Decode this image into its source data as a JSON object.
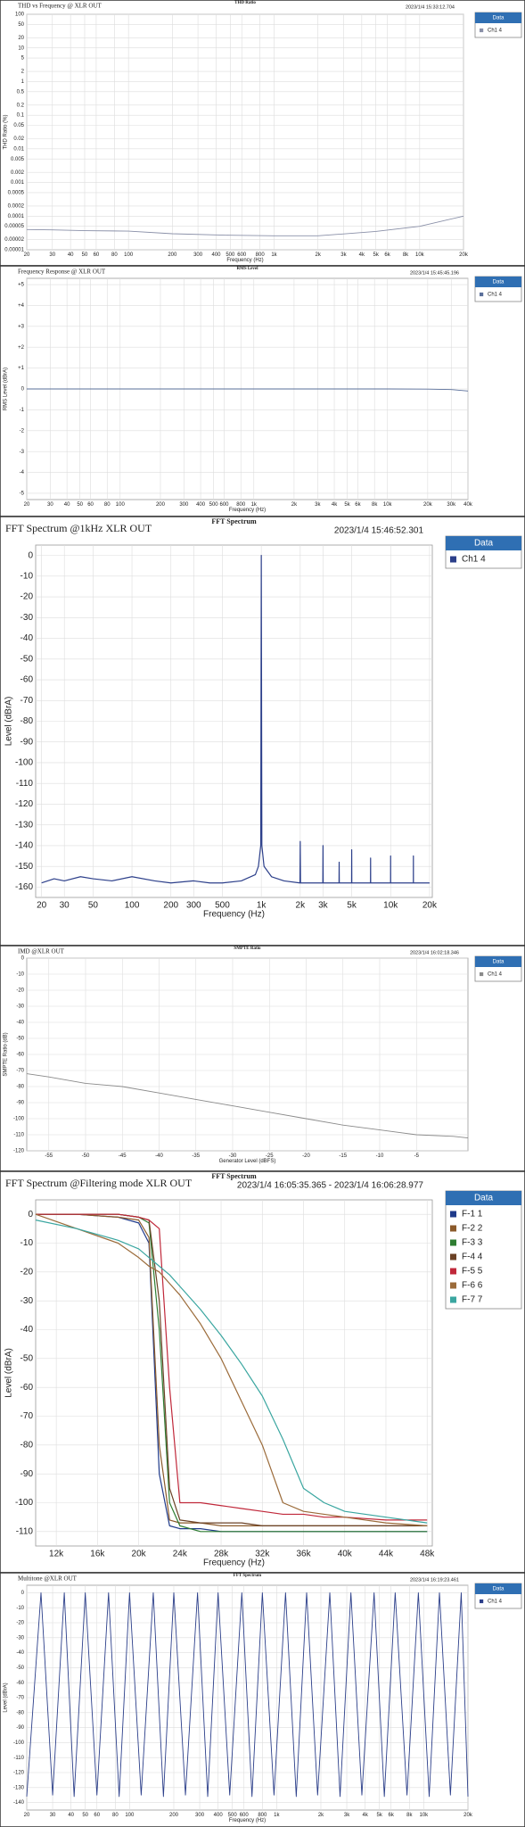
{
  "chart_data": [
    {
      "type": "line",
      "title": "THD vs Frequency @ XLR OUT",
      "header": "THD Ratio",
      "timestamp": "2023/1/4 15:33:12.704",
      "x_label": "Frequency (Hz)",
      "y_label": "THD Ratio (%)",
      "x_log": true,
      "y_log": true,
      "grid": true,
      "legend_title": "Data",
      "legend": "right",
      "xlim": [
        20,
        20000
      ],
      "ylim": [
        1e-05,
        100
      ],
      "xticks": [
        20,
        30,
        40,
        50,
        60,
        80,
        100,
        200,
        300,
        400,
        500,
        600,
        800,
        {
          "value": 1000,
          "label": "1k"
        },
        {
          "value": 2000,
          "label": "2k"
        },
        {
          "value": 3000,
          "label": "3k"
        },
        {
          "value": 4000,
          "label": "4k"
        },
        {
          "value": 5000,
          "label": "5k"
        },
        {
          "value": 6000,
          "label": "6k"
        },
        {
          "value": 8000,
          "label": "8k"
        },
        {
          "value": 10000,
          "label": "10k"
        },
        {
          "value": 20000,
          "label": "20k"
        }
      ],
      "yticks": [
        100,
        50,
        20,
        10,
        5,
        2,
        1,
        0.5,
        0.2,
        0.1,
        0.05,
        0.02,
        0.01,
        0.005,
        0.002,
        0.001,
        0.0005,
        0.0002,
        0.0001,
        5e-05,
        2e-05,
        1e-05
      ],
      "x": [
        20,
        30,
        50,
        100,
        200,
        500,
        1000,
        2000,
        5000,
        10000,
        20000
      ],
      "series": [
        {
          "name": "Ch1 4",
          "color": "#8a90a8",
          "values": [
            4e-05,
            3.9e-05,
            3.7e-05,
            3.6e-05,
            3e-05,
            2.7e-05,
            2.6e-05,
            2.6e-05,
            3.5e-05,
            5e-05,
            0.0001
          ]
        }
      ]
    },
    {
      "type": "line",
      "title": "Frequency Response @ XLR OUT",
      "header": "RMS Level",
      "timestamp": "2023/1/4 15:45:45.196",
      "x_label": "Frequency (Hz)",
      "y_label": "RMS Level (dBrA)",
      "x_log": true,
      "y_log": false,
      "grid": true,
      "legend_title": "Data",
      "legend": "right",
      "xlim": [
        20,
        40000
      ],
      "ylim": [
        -5.3,
        5.3
      ],
      "xticks": [
        20,
        30,
        40,
        50,
        60,
        80,
        100,
        200,
        300,
        400,
        500,
        600,
        800,
        {
          "value": 1000,
          "label": "1k"
        },
        {
          "value": 2000,
          "label": "2k"
        },
        {
          "value": 3000,
          "label": "3k"
        },
        {
          "value": 4000,
          "label": "4k"
        },
        {
          "value": 5000,
          "label": "5k"
        },
        {
          "value": 6000,
          "label": "6k"
        },
        {
          "value": 8000,
          "label": "8k"
        },
        {
          "value": 10000,
          "label": "10k"
        },
        {
          "value": 20000,
          "label": "20k"
        },
        {
          "value": 30000,
          "label": "30k"
        },
        {
          "value": 40000,
          "label": "40k"
        }
      ],
      "yticks": [
        {
          "value": 5,
          "label": "+5"
        },
        {
          "value": 4,
          "label": "+4"
        },
        {
          "value": 3,
          "label": "+3"
        },
        {
          "value": 2,
          "label": "+2"
        },
        {
          "value": 1,
          "label": "+1"
        },
        0,
        -1,
        -2,
        -3,
        -4,
        -5
      ],
      "x": [
        20,
        100,
        1000,
        10000,
        20000,
        30000,
        40000
      ],
      "series": [
        {
          "name": "Ch1 4",
          "color": "#5a6f9a",
          "values": [
            0,
            0,
            0,
            0,
            -0.01,
            -0.03,
            -0.1
          ]
        }
      ]
    },
    {
      "type": "line",
      "title": "FFT Spectrum @1kHz XLR OUT",
      "header": "FFT Spectrum",
      "timestamp": "2023/1/4 15:46:52.301",
      "x_label": "Frequency (Hz)",
      "y_label": "Level (dBrA)",
      "x_log": true,
      "y_log": false,
      "grid": true,
      "legend_title": "Data",
      "legend": "right",
      "xlim": [
        18,
        21000
      ],
      "ylim": [
        -165,
        5
      ],
      "xticks": [
        20,
        30,
        50,
        100,
        200,
        300,
        500,
        {
          "value": 1000,
          "label": "1k"
        },
        {
          "value": 2000,
          "label": "2k"
        },
        {
          "value": 3000,
          "label": "3k"
        },
        {
          "value": 5000,
          "label": "5k"
        },
        {
          "value": 10000,
          "label": "10k"
        },
        {
          "value": 20000,
          "label": "20k"
        }
      ],
      "yticks": [
        0,
        -10,
        -20,
        -30,
        -40,
        -50,
        -60,
        -70,
        -80,
        -90,
        -100,
        -110,
        -120,
        -130,
        -140,
        -150,
        -160
      ],
      "x": [
        20,
        25,
        30,
        40,
        50,
        70,
        100,
        150,
        200,
        300,
        400,
        500,
        700,
        900,
        950,
        990,
        1000,
        1010,
        1050,
        1200,
        1500,
        1990,
        2000,
        2010,
        2990,
        3000,
        3010,
        3990,
        4000,
        4010,
        4990,
        5000,
        5010,
        6990,
        7000,
        7010,
        9990,
        10000,
        10010,
        14990,
        15000,
        15010,
        20000
      ],
      "series": [
        {
          "name": "Ch1 4",
          "color": "#2c3f8a",
          "values": [
            -158,
            -156,
            -157,
            -155,
            -156,
            -157,
            -155,
            -157,
            -158,
            -157,
            -158,
            -158,
            -157,
            -154,
            -150,
            -140,
            0,
            -140,
            -150,
            -155,
            -157,
            -158,
            -138,
            -158,
            -158,
            -140,
            -158,
            -158,
            -148,
            -158,
            -158,
            -142,
            -158,
            -158,
            -146,
            -158,
            -158,
            -145,
            -158,
            -158,
            -145,
            -158,
            -158
          ]
        }
      ]
    },
    {
      "type": "line",
      "title": "IMD @XLR OUT",
      "header": "SMPTE Ratio",
      "timestamp": "2023/1/4 16:02:18.346",
      "x_label": "Generator Level (dBFS)",
      "y_label": "SMPTE Ratio (dB)",
      "x_log": false,
      "y_log": false,
      "grid": true,
      "legend_title": "Data",
      "legend": "right",
      "xlim": [
        -58,
        2
      ],
      "ylim": [
        -120,
        0
      ],
      "xticks": [
        -55,
        -50,
        -45,
        -40,
        -35,
        -30,
        -25,
        -20,
        -15,
        -10,
        -5
      ],
      "yticks": [
        0,
        -10,
        -20,
        -30,
        -40,
        -50,
        -60,
        -70,
        -80,
        -90,
        -100,
        -110,
        -120
      ],
      "x": [
        -58,
        -55,
        -50,
        -45,
        -40,
        -35,
        -30,
        -25,
        -20,
        -15,
        -10,
        -5,
        0,
        2
      ],
      "series": [
        {
          "name": "Ch1 4",
          "color": "#8a8a8a",
          "values": [
            -72,
            -74,
            -78,
            -80,
            -84,
            -88,
            -92,
            -96,
            -100,
            -104,
            -107,
            -110,
            -111,
            -112
          ]
        }
      ]
    },
    {
      "type": "line",
      "title": "FFT Spectrum @Filtering mode XLR OUT",
      "header": "FFT Spectrum",
      "timestamp": "2023/1/4 16:05:35.365 - 2023/1/4 16:06:28.977",
      "x_label": "Frequency (Hz)",
      "y_label": "Level (dBrA)",
      "x_log": false,
      "y_log": false,
      "grid": true,
      "legend_title": "Data",
      "legend": "right",
      "xlim": [
        10000,
        48500
      ],
      "ylim": [
        -115,
        5
      ],
      "xticks": [
        {
          "value": 12000,
          "label": "12k"
        },
        {
          "value": 16000,
          "label": "16k"
        },
        {
          "value": 20000,
          "label": "20k"
        },
        {
          "value": 24000,
          "label": "24k"
        },
        {
          "value": 28000,
          "label": "28k"
        },
        {
          "value": 32000,
          "label": "32k"
        },
        {
          "value": 36000,
          "label": "36k"
        },
        {
          "value": 40000,
          "label": "40k"
        },
        {
          "value": 44000,
          "label": "44k"
        },
        {
          "value": 48000,
          "label": "48k"
        }
      ],
      "yticks": [
        0,
        -10,
        -20,
        -30,
        -40,
        -50,
        -60,
        -70,
        -80,
        -90,
        -100,
        -110
      ],
      "x": [
        10000,
        14000,
        18000,
        20000,
        21000,
        22000,
        23000,
        24000,
        26000,
        28000,
        30000,
        32000,
        34000,
        36000,
        38000,
        40000,
        44000,
        48000
      ],
      "series": [
        {
          "name": "F-1 1",
          "color": "#1f3a8a",
          "values": [
            0,
            0,
            -1,
            -3,
            -10,
            -90,
            -108,
            -109,
            -109,
            -110,
            -110,
            -110,
            -110,
            -110,
            -110,
            -110,
            -110,
            -110
          ]
        },
        {
          "name": "F-2 2",
          "color": "#8b5a2b",
          "values": [
            0,
            0,
            -1,
            -2,
            -8,
            -80,
            -106,
            -107,
            -107,
            -108,
            -108,
            -108,
            -108,
            -108,
            -108,
            -108,
            -108,
            -108
          ]
        },
        {
          "name": "F-3 3",
          "color": "#2e7d32",
          "values": [
            0,
            0,
            0,
            -1,
            -3,
            -40,
            -100,
            -108,
            -110,
            -110,
            -110,
            -110,
            -110,
            -110,
            -110,
            -110,
            -110,
            -110
          ]
        },
        {
          "name": "F-4 4",
          "color": "#6b4226",
          "values": [
            0,
            0,
            0,
            -1,
            -2,
            -30,
            -95,
            -106,
            -107,
            -107,
            -107,
            -108,
            -108,
            -108,
            -108,
            -108,
            -108,
            -108
          ]
        },
        {
          "name": "F-5 5",
          "color": "#c0283a",
          "values": [
            0,
            0,
            0,
            -1,
            -2,
            -5,
            -60,
            -100,
            -100,
            -101,
            -102,
            -103,
            -104,
            -104,
            -105,
            -105,
            -106,
            -106
          ]
        },
        {
          "name": "F-6 6",
          "color": "#9b6b3a",
          "values": [
            0,
            -5,
            -10,
            -15,
            -18,
            -20,
            -24,
            -28,
            -38,
            -50,
            -65,
            -80,
            -100,
            -103,
            -104,
            -105,
            -107,
            -108
          ]
        },
        {
          "name": "F-7 7",
          "color": "#3aa6a0",
          "values": [
            -2,
            -5,
            -9,
            -12,
            -15,
            -18,
            -21,
            -25,
            -33,
            -42,
            -52,
            -63,
            -78,
            -95,
            -100,
            -103,
            -105,
            -107
          ]
        }
      ]
    },
    {
      "type": "line",
      "title": "Multitone @XLR OUT",
      "header": "FFT Spectrum",
      "timestamp": "2023/1/4 16:19:23.461",
      "x_label": "Frequency (Hz)",
      "y_label": "Level (dBrA)",
      "x_log": true,
      "y_log": false,
      "grid": true,
      "legend_title": "Data",
      "legend": "right",
      "xlim": [
        20,
        20000
      ],
      "ylim": [
        -145,
        5
      ],
      "xticks": [
        20,
        30,
        40,
        50,
        60,
        80,
        100,
        200,
        300,
        400,
        500,
        600,
        800,
        {
          "value": 1000,
          "label": "1k"
        },
        {
          "value": 2000,
          "label": "2k"
        },
        {
          "value": 3000,
          "label": "3k"
        },
        {
          "value": 4000,
          "label": "4k"
        },
        {
          "value": 5000,
          "label": "5k"
        },
        {
          "value": 6000,
          "label": "6k"
        },
        {
          "value": 8000,
          "label": "8k"
        },
        {
          "value": 10000,
          "label": "10k"
        },
        {
          "value": 20000,
          "label": "20k"
        }
      ],
      "yticks": [
        0,
        -10,
        -20,
        -30,
        -40,
        -50,
        -60,
        -70,
        -80,
        -90,
        -100,
        -110,
        -120,
        -130,
        -140
      ],
      "x": [
        20,
        25,
        30,
        36,
        42,
        50,
        60,
        72,
        85,
        100,
        120,
        145,
        170,
        200,
        240,
        290,
        340,
        400,
        480,
        580,
        680,
        800,
        960,
        1150,
        1360,
        1600,
        1900,
        2300,
        2700,
        3200,
        3800,
        4600,
        5400,
        6400,
        7700,
        9200,
        10900,
        12800,
        15200,
        18000,
        20000
      ],
      "series": [
        {
          "name": "Ch1 4",
          "color": "#2c3f8a",
          "values": [
            -136,
            0,
            -135,
            0,
            -136,
            0,
            -135,
            0,
            -136,
            0,
            -135,
            0,
            -136,
            0,
            -135,
            0,
            -136,
            0,
            -135,
            0,
            -136,
            0,
            -135,
            0,
            -136,
            0,
            -135,
            0,
            -136,
            0,
            -135,
            0,
            -136,
            0,
            -135,
            0,
            -136,
            0,
            -135,
            0,
            -136
          ]
        }
      ]
    }
  ]
}
